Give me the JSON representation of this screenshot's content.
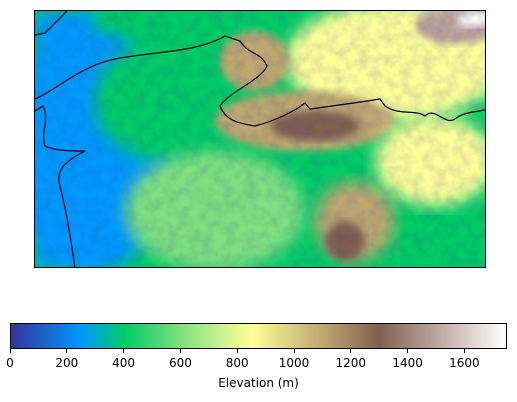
{
  "map": {
    "colormap": "terrain",
    "colormap_stops": [
      {
        "v": 0,
        "color": "#333399"
      },
      {
        "v": 250,
        "color": "#0099ff"
      },
      {
        "v": 400,
        "color": "#00cc66"
      },
      {
        "v": 600,
        "color": "#80e080"
      },
      {
        "v": 850,
        "color": "#ffff99"
      },
      {
        "v": 1100,
        "color": "#bfa870"
      },
      {
        "v": 1300,
        "color": "#806050"
      },
      {
        "v": 1500,
        "color": "#bba49d"
      },
      {
        "v": 1750,
        "color": "#ffffff"
      }
    ],
    "elevation_range_m": [
      0,
      1750
    ],
    "boundary_color": "#000000"
  },
  "colorbar": {
    "label": "Elevation (m)",
    "range": [
      0,
      1750
    ],
    "ticks": [
      {
        "value": 0,
        "label": "0"
      },
      {
        "value": 200,
        "label": "200"
      },
      {
        "value": 400,
        "label": "400"
      },
      {
        "value": 600,
        "label": "600"
      },
      {
        "value": 800,
        "label": "800"
      },
      {
        "value": 1000,
        "label": "1000"
      },
      {
        "value": 1200,
        "label": "1200"
      },
      {
        "value": 1400,
        "label": "1400"
      },
      {
        "value": 1600,
        "label": "1600"
      }
    ]
  }
}
